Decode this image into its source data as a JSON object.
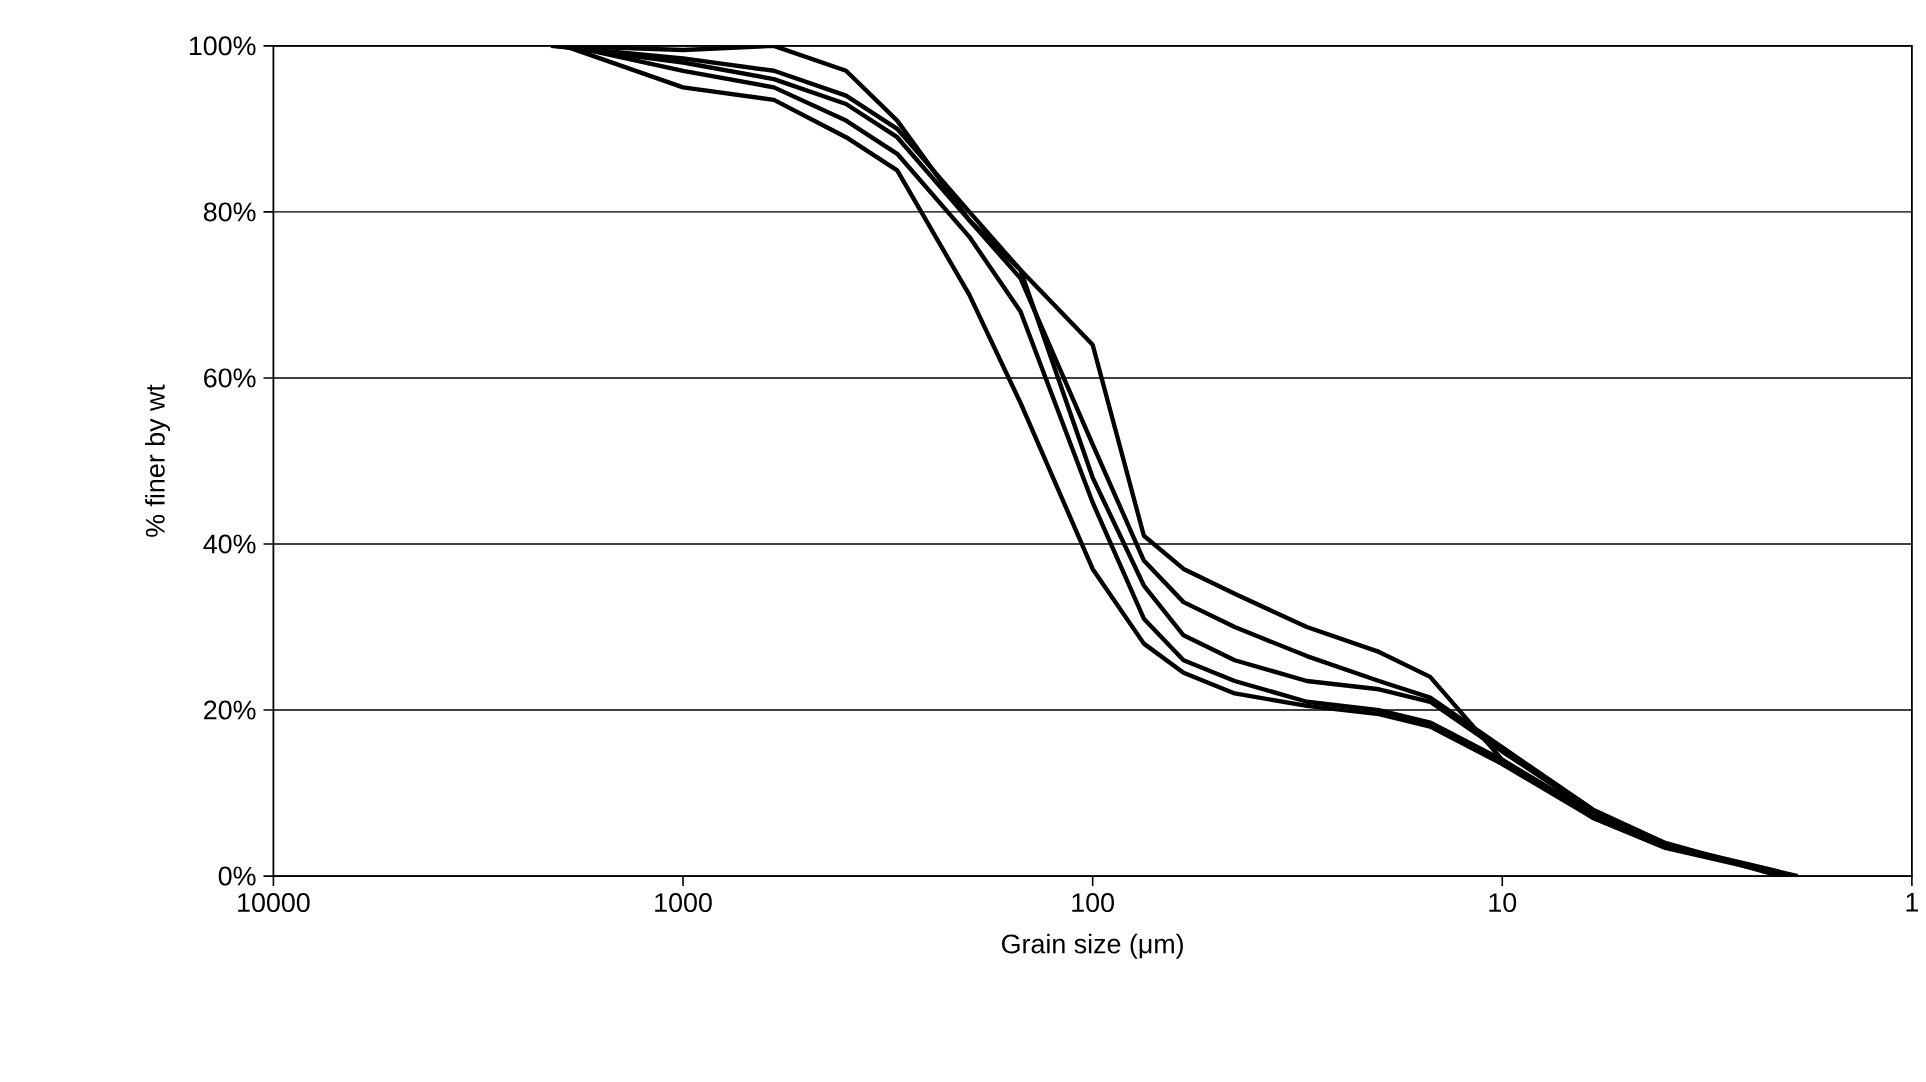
{
  "chart_data": {
    "type": "line",
    "xlabel": "Grain size (μm)",
    "ylabel": "% finer by wt",
    "log": "x",
    "grid": "y",
    "marker": "none",
    "line_style": "solid",
    "xlim": [
      10000,
      1
    ],
    "xticks": [
      10000,
      1000,
      100,
      10,
      1
    ],
    "ylim": [
      0,
      100
    ],
    "yticks": [
      {
        "value": 0,
        "label": "0%"
      },
      {
        "value": 20,
        "label": "20%"
      },
      {
        "value": 40,
        "label": "40%"
      },
      {
        "value": 60,
        "label": "60%"
      },
      {
        "value": 80,
        "label": "80%"
      },
      {
        "value": 100,
        "label": "100%"
      }
    ],
    "series": [
      {
        "color": "#000000",
        "x": [
          2000,
          1000,
          600,
          400,
          300,
          200,
          150,
          100,
          75,
          60,
          45,
          30,
          20,
          15,
          10,
          6,
          4,
          2
        ],
        "values": [
          100,
          99.5,
          100,
          97,
          91,
          79,
          73,
          64,
          41,
          37,
          34,
          30,
          27,
          24,
          14,
          7,
          3.4,
          0
        ]
      },
      {
        "color": "#000000",
        "x": [
          1950,
          1000,
          600,
          400,
          300,
          200,
          150,
          100,
          75,
          60,
          45,
          30,
          20,
          15,
          10,
          6,
          4,
          1.95
        ],
        "values": [
          100,
          95,
          93.5,
          89,
          85,
          70,
          57,
          37,
          28,
          24.5,
          22,
          20.5,
          19.5,
          18,
          13.5,
          7,
          3.5,
          0
        ]
      },
      {
        "color": "#000000",
        "x": [
          1900,
          1000,
          600,
          400,
          300,
          200,
          150,
          100,
          75,
          60,
          45,
          30,
          20,
          15,
          10,
          6,
          4,
          1.9
        ],
        "values": [
          100,
          97,
          95,
          91,
          87,
          77,
          68,
          45,
          31,
          26,
          23.5,
          21,
          20,
          18.5,
          14,
          7.5,
          3.8,
          0
        ]
      },
      {
        "color": "#000000",
        "x": [
          2050,
          1000,
          600,
          400,
          300,
          200,
          150,
          100,
          75,
          60,
          45,
          30,
          20,
          15,
          10,
          6,
          4,
          2.05
        ],
        "values": [
          100,
          98,
          96,
          93,
          89,
          79,
          72,
          52,
          38,
          33,
          30,
          26.5,
          23.5,
          21.5,
          15.5,
          8,
          4,
          0
        ]
      },
      {
        "color": "#000000",
        "x": [
          2100,
          1000,
          600,
          400,
          300,
          200,
          150,
          100,
          75,
          60,
          45,
          30,
          20,
          15,
          10,
          6,
          4,
          2.1
        ],
        "values": [
          100,
          98.5,
          97,
          94,
          90,
          80,
          73,
          48,
          35,
          29,
          26,
          23.5,
          22.5,
          21,
          15,
          7.8,
          3.9,
          0
        ]
      }
    ]
  }
}
